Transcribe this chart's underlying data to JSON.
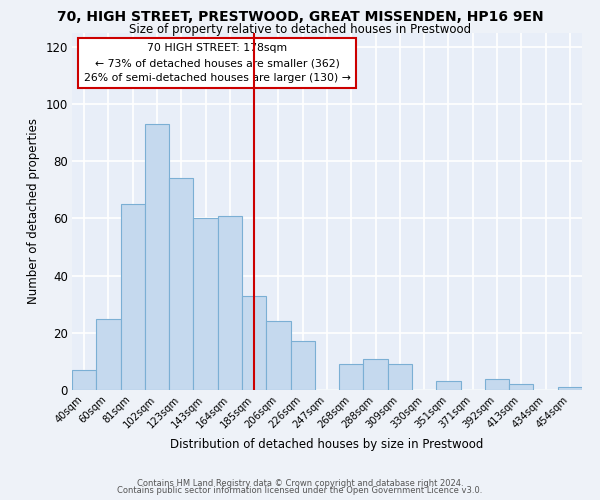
{
  "title": "70, HIGH STREET, PRESTWOOD, GREAT MISSENDEN, HP16 9EN",
  "subtitle": "Size of property relative to detached houses in Prestwood",
  "xlabel": "Distribution of detached houses by size in Prestwood",
  "ylabel": "Number of detached properties",
  "bar_labels": [
    "40sqm",
    "60sqm",
    "81sqm",
    "102sqm",
    "123sqm",
    "143sqm",
    "164sqm",
    "185sqm",
    "206sqm",
    "226sqm",
    "247sqm",
    "268sqm",
    "288sqm",
    "309sqm",
    "330sqm",
    "351sqm",
    "371sqm",
    "392sqm",
    "413sqm",
    "434sqm",
    "454sqm"
  ],
  "bar_values": [
    7,
    25,
    65,
    93,
    74,
    60,
    61,
    33,
    24,
    17,
    0,
    9,
    11,
    9,
    0,
    3,
    0,
    4,
    2,
    0,
    1
  ],
  "bar_color": "#c5d9ee",
  "bar_edge_color": "#7bafd4",
  "vline_index": 7,
  "vline_color": "#cc0000",
  "annotation_title": "70 HIGH STREET: 178sqm",
  "annotation_line1": "← 73% of detached houses are smaller (362)",
  "annotation_line2": "26% of semi-detached houses are larger (130) →",
  "annotation_box_color": "#ffffff",
  "annotation_box_edge": "#cc0000",
  "ylim": [
    0,
    125
  ],
  "yticks": [
    0,
    20,
    40,
    60,
    80,
    100,
    120
  ],
  "footer1": "Contains HM Land Registry data © Crown copyright and database right 2024.",
  "footer2": "Contains public sector information licensed under the Open Government Licence v3.0.",
  "background_color": "#eef2f8",
  "plot_bg_color": "#e8eef8",
  "grid_color": "#ffffff"
}
